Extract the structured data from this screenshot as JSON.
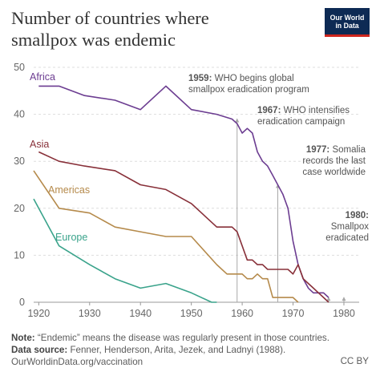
{
  "title": "Number of countries where smallpox was endemic",
  "logo": {
    "line1": "Our World",
    "line2": "in Data",
    "brand_color": "#0d2a54",
    "accent_color": "#ce261e"
  },
  "footer": {
    "note_label": "Note:",
    "note_text": " “Endemic” means the disease was regularly present in those countries.",
    "source_label": "Data source:",
    "source_text": " Fenner, Henderson, Arita, Jezek, and Ladnyi (1988).",
    "url": "OurWorldinData.org/vaccination",
    "license": "CC BY"
  },
  "chart_data": {
    "type": "line",
    "title": "Number of countries where smallpox was endemic",
    "xlabel": "",
    "ylabel": "",
    "xlim": [
      1919,
      1983
    ],
    "ylim": [
      0,
      50
    ],
    "x_ticks": [
      "1920",
      "1930",
      "1940",
      "1950",
      "1960",
      "1970",
      "1980"
    ],
    "y_ticks": [
      "0",
      "10",
      "20",
      "30",
      "40",
      "50"
    ],
    "grid": "horizontal dashed",
    "series": [
      {
        "name": "Africa",
        "color": "#6c3d91",
        "x": [
          1920,
          1924,
          1929,
          1935,
          1940,
          1945,
          1950,
          1955,
          1958,
          1959,
          1960,
          1961,
          1962,
          1963,
          1964,
          1965,
          1966,
          1967,
          1968,
          1969,
          1970,
          1971,
          1972,
          1973,
          1974,
          1975,
          1976,
          1977
        ],
        "y": [
          46,
          46,
          44,
          43,
          41,
          46,
          41,
          40,
          39,
          38,
          36,
          37,
          36,
          32,
          30,
          29,
          27,
          25,
          23,
          20,
          13,
          8,
          5,
          3,
          2,
          2,
          2,
          1
        ]
      },
      {
        "name": "Asia",
        "color": "#883039",
        "x": [
          1920,
          1924,
          1929,
          1935,
          1940,
          1945,
          1950,
          1955,
          1958,
          1959,
          1960,
          1961,
          1962,
          1963,
          1964,
          1965,
          1966,
          1967,
          1968,
          1969,
          1970,
          1971,
          1972,
          1973,
          1974,
          1975,
          1976,
          1977
        ],
        "y": [
          32,
          30,
          29,
          28,
          25,
          24,
          21,
          16,
          16,
          15,
          12,
          9,
          9,
          8,
          8,
          7,
          7,
          7,
          7,
          7,
          6,
          8,
          5,
          4,
          3,
          2,
          1,
          0
        ]
      },
      {
        "name": "Americas",
        "color": "#b58a4b",
        "x": [
          1919,
          1924,
          1930,
          1935,
          1940,
          1945,
          1950,
          1955,
          1957,
          1960,
          1961,
          1962,
          1963,
          1964,
          1965,
          1966,
          1970,
          1971
        ],
        "y": [
          28,
          20,
          19,
          16,
          15,
          14,
          14,
          8,
          6,
          6,
          5,
          5,
          6,
          5,
          5,
          1,
          1,
          0
        ]
      },
      {
        "name": "Europe",
        "color": "#3aa38b",
        "x": [
          1919,
          1924,
          1930,
          1935,
          1940,
          1945,
          1950,
          1954,
          1955
        ],
        "y": [
          22,
          12,
          8,
          5,
          3,
          4,
          2,
          0,
          0
        ]
      }
    ],
    "annotations": [
      {
        "year": 1959,
        "bold": "1959:",
        "text": " WHO begins global",
        "text2": "smallpox eradication program",
        "top": 39
      },
      {
        "year": 1967,
        "bold": "1967:",
        "text": " WHO intensifies",
        "text2": "eradication campaign",
        "top": 25
      },
      {
        "year": 1977,
        "bold": "1977:",
        "text": " Somalia",
        "text2": "records the last",
        "text3": "case worldwide",
        "top": 1
      },
      {
        "year": 1980,
        "bold": "1980:",
        "text": "Smallpox",
        "text2": "eradicated",
        "top": 1
      }
    ]
  }
}
